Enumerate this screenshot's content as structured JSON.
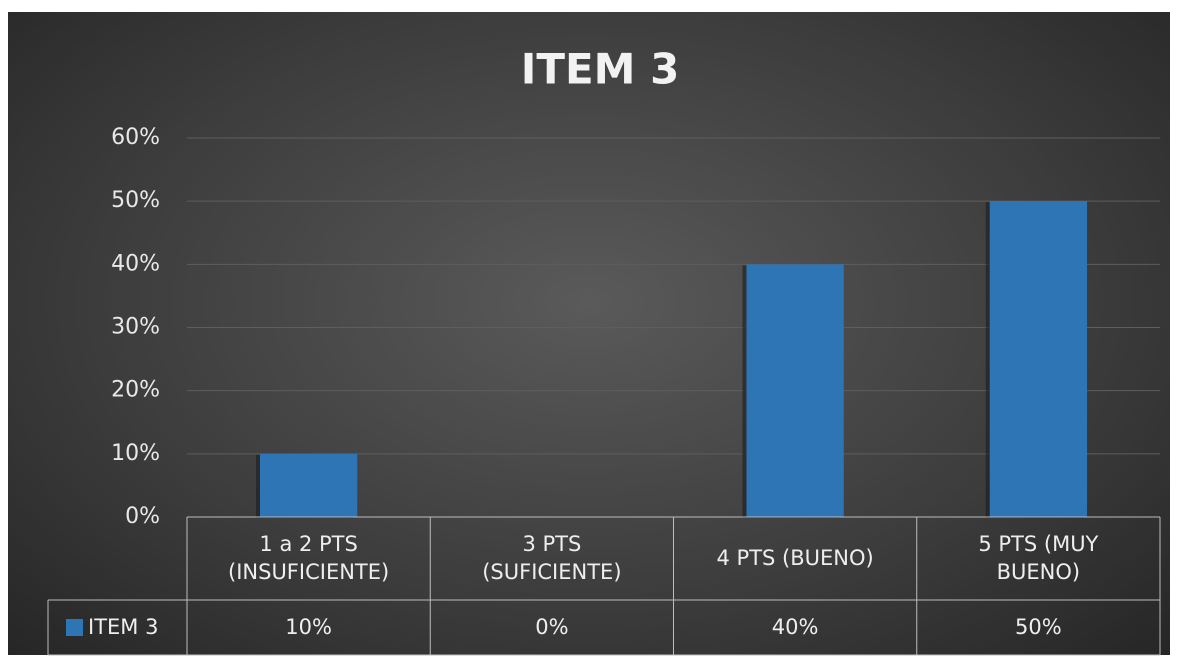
{
  "chart_data": {
    "type": "bar",
    "title": "ITEM 3",
    "categories": [
      "1 a 2 PTS (INSUFICIENTE)",
      "3 PTS (SUFICIENTE)",
      "4 PTS (BUENO)",
      "5 PTS (MUY BUENO)"
    ],
    "series": [
      {
        "name": "ITEM 3",
        "color": "#2e75b6",
        "values": [
          10,
          0,
          40,
          50
        ],
        "value_labels": [
          "10%",
          "0%",
          "40%",
          "50%"
        ]
      }
    ],
    "ylim": [
      0,
      60
    ],
    "yticks": [
      {
        "value": 0,
        "label": "0%"
      },
      {
        "value": 10,
        "label": "10%"
      },
      {
        "value": 20,
        "label": "20%"
      },
      {
        "value": 30,
        "label": "30%"
      },
      {
        "value": 40,
        "label": "40%"
      },
      {
        "value": 50,
        "label": "50%"
      },
      {
        "value": 60,
        "label": "60%"
      }
    ],
    "grid": true,
    "data_table": true
  }
}
